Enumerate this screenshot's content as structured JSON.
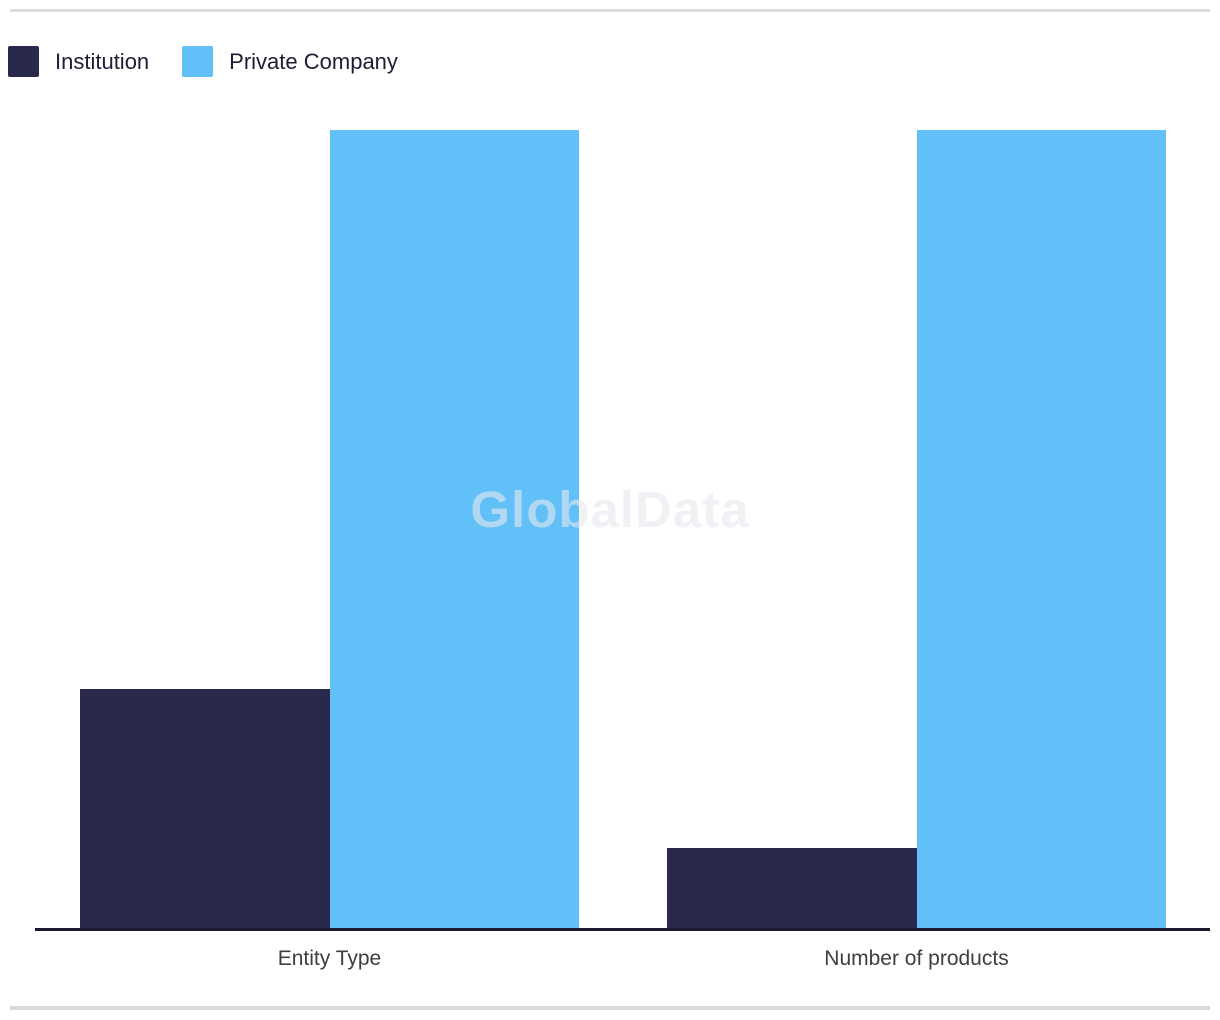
{
  "chart_data": {
    "type": "bar",
    "categories": [
      "Entity Type",
      "Number of products"
    ],
    "series": [
      {
        "name": "Institution",
        "color": "#29294d",
        "values": [
          30,
          10
        ]
      },
      {
        "name": "Private Company",
        "color": "#61c0f7",
        "values": [
          100,
          100
        ]
      }
    ],
    "title": "",
    "xlabel": "",
    "ylabel": "",
    "ylim": [
      0,
      100
    ],
    "grid": false,
    "legend_position": "top-left"
  },
  "legend": {
    "items": [
      {
        "label": "Institution",
        "color": "#29294d"
      },
      {
        "label": "Private Company",
        "color": "#61c0f7"
      }
    ]
  },
  "watermark": "GlobalData",
  "colors": {
    "axis_line": "#191931",
    "divider": "#dcdcdc",
    "label_text": "#3e3e3e",
    "legend_text": "#1d1d35"
  }
}
